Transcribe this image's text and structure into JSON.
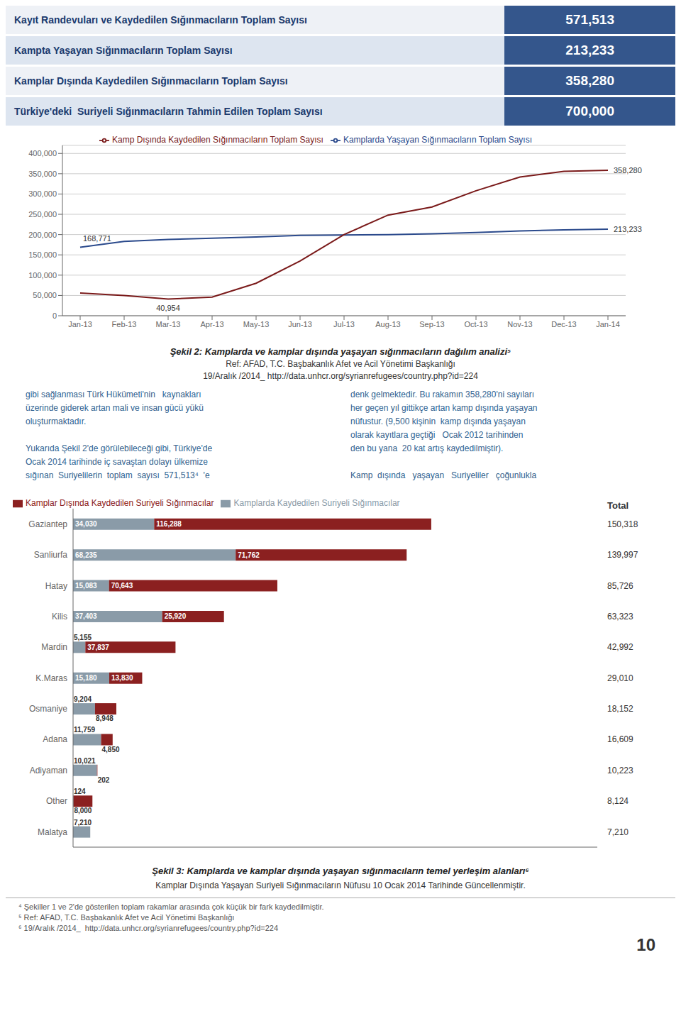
{
  "chart_data": [
    {
      "type": "table",
      "rows": [
        [
          "Kayıt Randevuları ve Kaydedilen Sığınmacıların Toplam Sayısı",
          "571,513"
        ],
        [
          "Kampta Yaşayan Sığınmacıların Toplam Sayısı",
          "213,233"
        ],
        [
          "Kamplar Dışında Kaydedilen Sığınmacıların Toplam Sayısı",
          "358,280"
        ],
        [
          "Türkiye'deki  Suriyeli Sığınmacıların Tahmin Edilen Toplam Sayısı",
          "700,000"
        ]
      ]
    },
    {
      "type": "line",
      "title": "Şekil 2: Kamplarda ve kamplar dışında yaşayan sığınmacıların dağılım analizi⁵",
      "categories": [
        "Jan-13",
        "Feb-13",
        "Mar-13",
        "Apr-13",
        "May-13",
        "Jun-13",
        "Jul-13",
        "Aug-13",
        "Sep-13",
        "Oct-13",
        "Nov-13",
        "Dec-13",
        "Jan-14"
      ],
      "series": [
        {
          "name": "Kamplarda Yaşayan Sığınmacıların Toplam Sayısı",
          "color": "#2b4a8c",
          "values": [
            168771,
            183000,
            188000,
            191000,
            194000,
            198000,
            199000,
            200000,
            202000,
            205000,
            209000,
            211500,
            213233
          ]
        },
        {
          "name": "Kamp Dışında Kaydedilen Sığınmacıların Toplam Sayısı",
          "color": "#7a1a1a",
          "values": [
            56000,
            50000,
            40954,
            46000,
            80000,
            135000,
            200000,
            248000,
            268000,
            308000,
            342000,
            356000,
            358280
          ]
        }
      ],
      "ylim": [
        0,
        420000
      ],
      "yticks": [
        0,
        {
          "value": 50000,
          "label": "50,000"
        },
        {
          "value": 100000,
          "label": "100,000"
        },
        {
          "value": 150000,
          "label": "150,000"
        },
        {
          "value": 200000,
          "label": "200,000"
        },
        {
          "value": 250000,
          "label": "250,000"
        },
        {
          "value": 300000,
          "label": "300,000"
        },
        {
          "value": 350000,
          "label": "350,000"
        },
        {
          "value": 400000,
          "label": "400,000"
        }
      ],
      "grid": true,
      "legend": "top",
      "annotations": [
        {
          "text": "168,771",
          "x": "Jan-13",
          "y": 168771
        },
        {
          "text": "40,954",
          "x": "Mar-13",
          "y": 40954
        },
        {
          "text": "213,233",
          "x": "Jan-14",
          "y": 213233
        },
        {
          "text": "358,280",
          "x": "Jan-14",
          "y": 358280
        },
        {
          "text": "Ref: AFAD, T.C. Başbakanlık Afet ve Acil Yönetimi Başkanlığı"
        },
        {
          "text": "19/Aralık /2014_ http://data.unhcr.org/syrianrefugees/country.php?id=224"
        },
        {
          "text": "gibi sağlanması Türk Hükümeti'nin   kaynakları\nüzerinde giderek artan mali ve insan gücü yükü\noluşturmaktadır.\n\nYukarıda Şekil 2'de görülebileceği gibi, Türkiye'de\nOcak 2014 tarihinde iç savaştan dolayı ülkemize\nsığınan  Suriyelilerin  toplam  sayısı  571,513⁴  'e"
        },
        {
          "text": "denk gelmektedir. Bu rakamın 358,280'ni sayıları\nher geçen yıl gittikçe artan kamp dışında yaşayan\nnüfustur. (9,500 kişinin  kamp dışında yaşayan\nolarak kayıtlara geçtiği   Ocak 2012 tarihinden\nden bu yana  20 kat artış kaydedilmiştir).\n\nKamp  dışında   yaşayan   Suriyeliler   çoğunlukla"
        }
      ]
    },
    {
      "type": "bar",
      "title": "Şekil 3: Kamplarda ve kamplar dışında yaşayan sığınmacıların temel yerleşim alanları⁶",
      "orientation": "horizontal",
      "stacked": true,
      "categories": [
        "Gaziantep",
        "Sanliurfa",
        "Hatay",
        "Kilis",
        "Mardin",
        "K.Maras",
        "Osmaniye",
        "Adana",
        "Adiyaman",
        "Other",
        "Malatya"
      ],
      "series": [
        {
          "name": "Kamplarda Kaydedilen Suriyeli Sığınmacılar",
          "color": "#8a9ba8",
          "values": [
            34030,
            68235,
            15083,
            37403,
            5155,
            15180,
            9204,
            11759,
            10021,
            124,
            7210
          ],
          "value_labels": [
            "34,030",
            "68,235",
            "15,083",
            "37,403",
            "5,155",
            "15,180",
            "9,204",
            "11,759",
            "10,021",
            "124",
            "7,210"
          ]
        },
        {
          "name": "Kamplar Dışında Kaydedilen Suriyeli Sığınmacılar",
          "color": "#8b2020",
          "values": [
            116288,
            71762,
            70643,
            25920,
            37837,
            13830,
            8948,
            4850,
            202,
            8000,
            0
          ],
          "value_labels": [
            "116,288",
            "71,762",
            "70,643",
            "25,920",
            "37,837",
            "13,830",
            "8,948",
            "4,850",
            "202",
            "8,000",
            null
          ]
        }
      ],
      "data_labels": true,
      "totals_title": "Total",
      "totals": [
        150318,
        139997,
        85726,
        63323,
        42992,
        29010,
        18152,
        16609,
        10223,
        8124,
        7210
      ],
      "total_labels": [
        "150,318",
        "139,997",
        "85,726",
        "63,323",
        "42,992",
        "29,010",
        "18,152",
        "16,609",
        "10,223",
        "8,124",
        "7,210"
      ],
      "xlim": [
        0,
        220000
      ],
      "xticks": [],
      "tick_labels": "y",
      "grid": false,
      "legend": "top",
      "annotations": [
        {
          "text": "Kamplar Dışında Yaşayan Suriyeli Sığınmacıların Nüfusu 10 Ocak 2014 Tarihinde Güncellenmiştir."
        },
        {
          "text": "⁴ Şekiller 1 ve 2'de gösterilen toplam rakamlar arasında çok küçük bir fark kaydedilmiştir."
        },
        {
          "text": "⁵ Ref: AFAD, T.C. Başbakanlık Afet ve Acil Yönetimi Başkanlığı"
        },
        {
          "text": "⁶ 19/Aralık /2014_  http://data.unhcr.org/syrianrefugees/country.php?id=224"
        },
        {
          "text": "10"
        }
      ]
    }
  ]
}
